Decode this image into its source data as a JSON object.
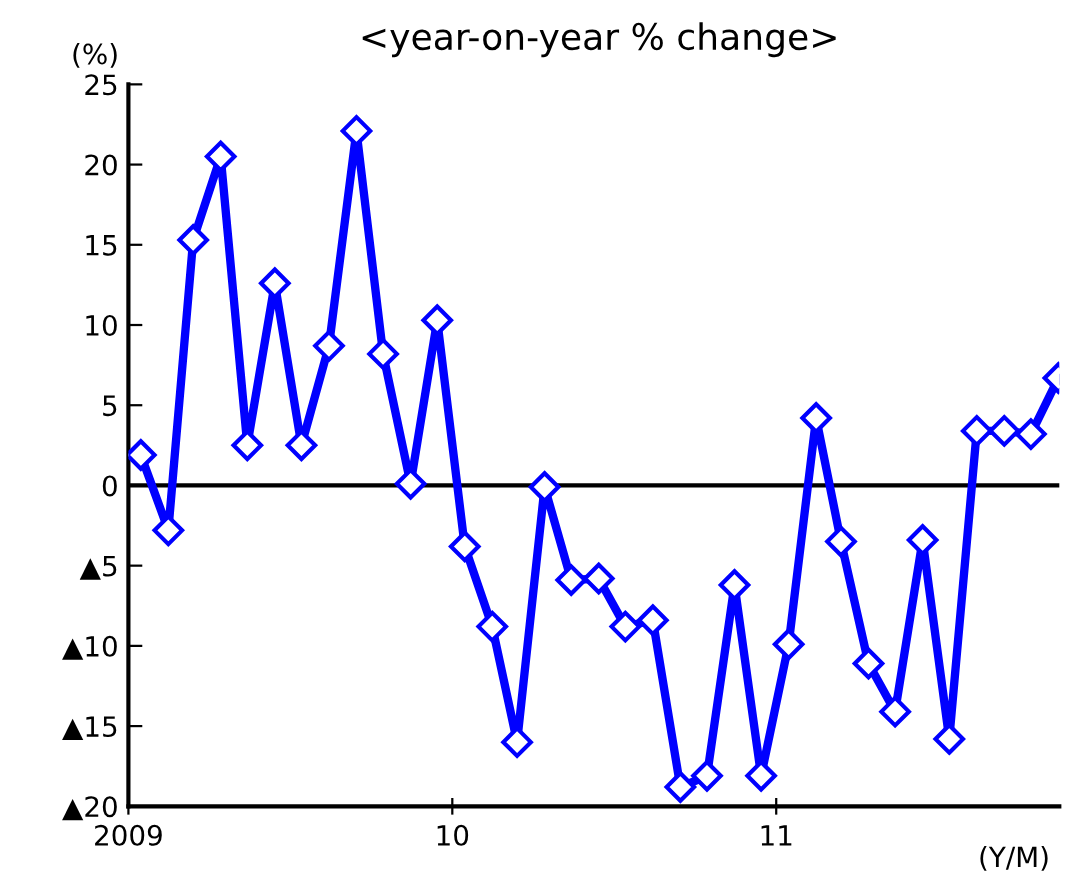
{
  "chart_data": {
    "type": "line",
    "title": "<year-on-year % change>",
    "ylabel": "(%)",
    "xlabel": "(Y/M)",
    "x": [
      "2009-01-15",
      "2009-02-15",
      "2009-03-15",
      "2009-04-15",
      "2009-05-15",
      "2009-06-15",
      "2009-07-15",
      "2009-08-15",
      "2009-09-15",
      "2009-10-15",
      "2009-11-15",
      "2009-12-15",
      "2010-01-15",
      "2010-02-15",
      "2010-03-15",
      "2010-04-15",
      "2010-05-15",
      "2010-06-15",
      "2010-07-15",
      "2010-08-15",
      "2010-09-15",
      "2010-10-15",
      "2010-11-15",
      "2010-12-15",
      "2011-01-15",
      "2011-02-15",
      "2011-03-15",
      "2011-04-15",
      "2011-05-15",
      "2011-06-15",
      "2011-07-15",
      "2011-08-15",
      "2011-09-15",
      "2011-10-15",
      "2011-11-15"
    ],
    "series": [
      {
        "color": "#0000ff",
        "values": [
          1.9,
          -2.8,
          15.3,
          20.5,
          2.5,
          12.6,
          2.5,
          8.7,
          22.1,
          8.2,
          0.1,
          10.3,
          -3.8,
          -8.8,
          -16.0,
          -0.1,
          -5.9,
          -5.8,
          -8.8,
          -8.4,
          -18.8,
          -18.1,
          -6.2,
          -18.1,
          -9.9,
          4.2,
          -3.5,
          -11.1,
          -14.1,
          -3.4,
          -15.8,
          3.4,
          3.4,
          3.2,
          6.7
        ]
      }
    ],
    "marker": "diamond",
    "line_style": "solid",
    "grid": false,
    "legend": false,
    "xlim": [
      "2009-01-01",
      "2011-11-16"
    ],
    "xticks": [
      {
        "value": "2009-01-01",
        "label": "2009"
      },
      {
        "value": "2010-01-01",
        "label": "10"
      },
      {
        "value": "2011-01-01",
        "label": "11"
      }
    ],
    "ylim": [
      -20,
      25
    ],
    "yticks": [
      {
        "value": -20,
        "label": "▲20"
      },
      {
        "value": -15,
        "label": "▲15"
      },
      {
        "value": -10,
        "label": "▲10"
      },
      {
        "value": -5,
        "label": "▲5"
      },
      0,
      5,
      10,
      15,
      20,
      25
    ],
    "ref_lines": [
      {
        "axis": "y",
        "value": 0,
        "color": "#000000"
      }
    ]
  }
}
